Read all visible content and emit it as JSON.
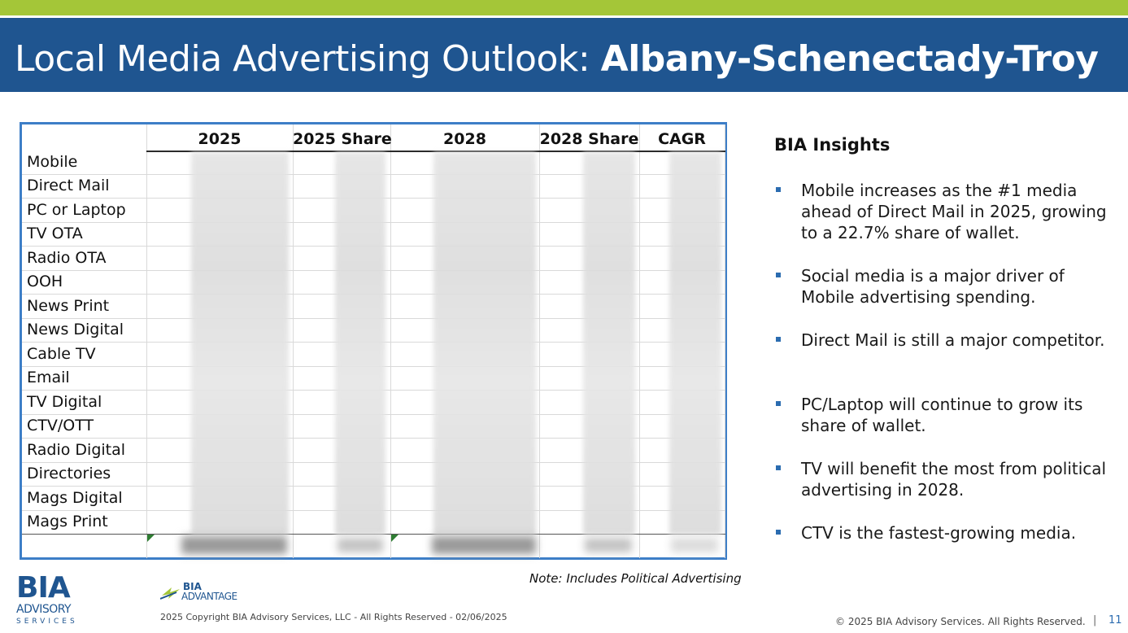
{
  "header": {
    "title_prefix": "Local Media Advertising Outlook: ",
    "title_market": "Albany-Schenectady-Troy"
  },
  "table": {
    "columns": [
      "2025",
      "2025 Share",
      "2028",
      "2028 Share",
      "CAGR"
    ],
    "rows": [
      "Mobile",
      "Direct Mail",
      "PC or Laptop",
      "TV OTA",
      "Radio OTA",
      "OOH",
      "News Print",
      "News Digital",
      "Cable TV",
      "Email",
      "TV Digital",
      "CTV/OTT",
      "Radio Digital",
      "Directories",
      "Mags Digital",
      "Mags Print"
    ]
  },
  "insights": {
    "title": "BIA Insights",
    "bullets": [
      "Mobile increases as the #1 media ahead of Direct Mail in 2025, growing to a 22.7% share of wallet.",
      "Social media is a major driver of Mobile advertising spending.",
      "Direct Mail is still a major competitor.",
      "PC/Laptop will continue to grow its share of wallet.",
      "TV will benefit the most from political advertising in 2028.",
      "CTV is the fastest-growing media."
    ]
  },
  "note": "Note: Includes Political Advertising",
  "footer": {
    "logo_main": "BIA",
    "logo_advisory": "ADVISORY",
    "logo_services": "SERVICES",
    "advantage_top": "BIA",
    "advantage_bottom": "ADVANTAGE",
    "copyright_left": "2025 Copyright BIA Advisory Services, LLC - All Rights Reserved - 02/06/2025",
    "copyright_right": "© 2025 BIA Advisory Services. All Rights Reserved.",
    "separator": "|",
    "page_number": "11"
  },
  "colors": {
    "accent_green": "#a4c638",
    "header_blue": "#1f5590",
    "table_border": "#3d7ec7",
    "bullet_blue": "#2b6cb0"
  }
}
